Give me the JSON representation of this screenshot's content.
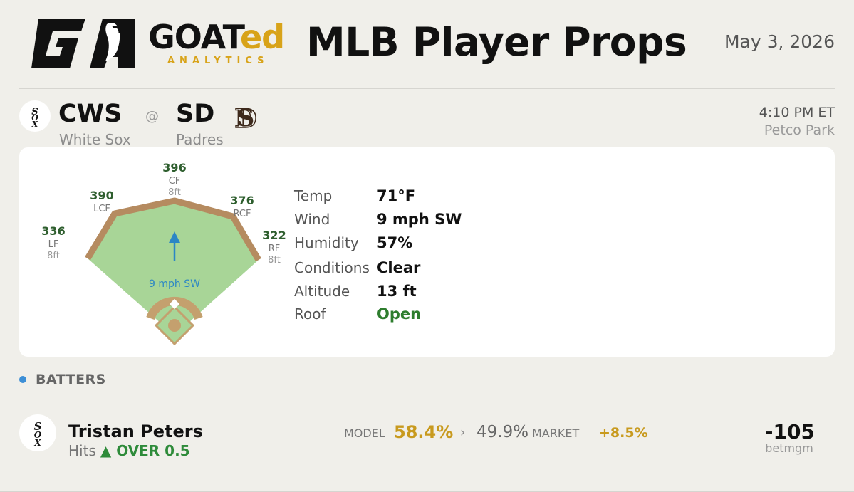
{
  "brand": {
    "name_main": "GOAT",
    "name_accent": "ed",
    "tagline": "ANALYTICS"
  },
  "header": {
    "title": "MLB Player Props",
    "date": "May 3, 2026"
  },
  "matchup": {
    "away": {
      "abbr": "CWS",
      "name": "White Sox"
    },
    "home": {
      "abbr": "SD",
      "name": "Padres"
    },
    "separator": "@",
    "time": "4:10 PM ET",
    "venue": "Petco Park"
  },
  "ballpark": {
    "fences": [
      {
        "pos": "LF",
        "distance": "336",
        "height": "8ft"
      },
      {
        "pos": "LCF",
        "distance": "390",
        "height": ""
      },
      {
        "pos": "CF",
        "distance": "396",
        "height": "8ft"
      },
      {
        "pos": "RCF",
        "distance": "376",
        "height": ""
      },
      {
        "pos": "RF",
        "distance": "322",
        "height": "8ft"
      }
    ],
    "wind_label": "9 mph SW"
  },
  "weather": [
    {
      "label": "Temp",
      "value": "71°F"
    },
    {
      "label": "Wind",
      "value": "9 mph SW"
    },
    {
      "label": "Humidity",
      "value": "57%"
    },
    {
      "label": "Conditions",
      "value": "Clear"
    },
    {
      "label": "Altitude",
      "value": "13 ft"
    },
    {
      "label": "Roof",
      "value": "Open"
    }
  ],
  "section": {
    "label": "BATTERS"
  },
  "props": [
    {
      "player": "Tristan Peters",
      "stat": "Hits",
      "pick": "▲ OVER 0.5",
      "model_label": "MODEL",
      "model_pct": "58.4%",
      "arrow": "›",
      "market_pct": "49.9%",
      "market_label": "MARKET",
      "edge": "+8.5%",
      "odds": "-105",
      "book": "betmgm"
    }
  ],
  "colors": {
    "accent_gold": "#d8a319",
    "positive_green": "#2e7d2e",
    "section_dot": "#3d8fd6",
    "wind_blue": "#2b86c5"
  }
}
